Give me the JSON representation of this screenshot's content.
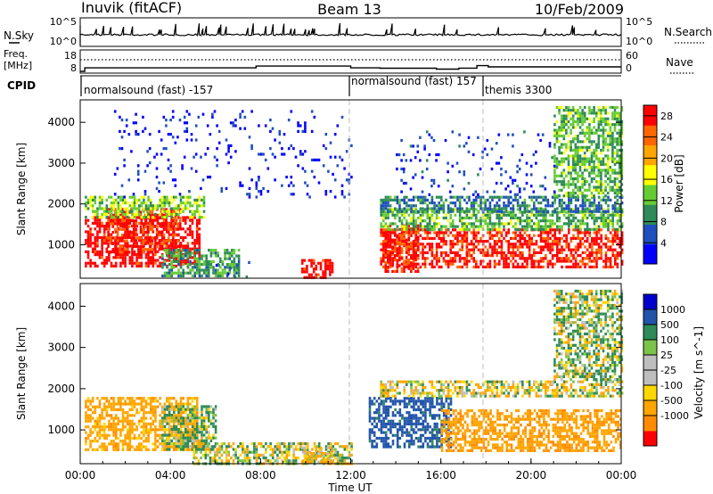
{
  "header": {
    "station": "Inuvik (fitACF)",
    "beam": "Beam 13",
    "date": "10/Feb/2009"
  },
  "panels": {
    "nsky": {
      "label": "N.Sky",
      "left_ticks": [
        "10^5",
        "10^0"
      ],
      "right_ticks": [
        "10^5",
        "10^0"
      ],
      "right_label": "N.Search"
    },
    "freq": {
      "label_line1": "Freq.",
      "label_line2": "[MHz]",
      "left_ticks": [
        "18",
        "8"
      ],
      "right_ticks": [
        "60",
        "0"
      ],
      "right_label": "Nave"
    },
    "cpid": {
      "label": "CPID",
      "programs": [
        "normalsound (fast) -157",
        "normalsound (fast) 157",
        "themis 3300"
      ]
    }
  },
  "colors": {
    "line": "#000000",
    "guide": "#bbbbbb",
    "power_scale": [
      "#0000ff",
      "#1f4fbf",
      "#2e8b57",
      "#66cc33",
      "#ffff00",
      "#ffa500",
      "#ff6600",
      "#ff0000"
    ],
    "velocity_scale": [
      "#ff0000",
      "#ff8c00",
      "#ffa500",
      "#ffd700",
      "#bebebe",
      "#bebebe",
      "#7cc34a",
      "#2e8b57",
      "#2255aa",
      "#0000cc"
    ]
  },
  "chart_data": [
    {
      "type": "heatmap",
      "name": "power",
      "ylabel": "Slant Range [km]",
      "yticks": [
        1000,
        2000,
        3000,
        4000
      ],
      "ylim": [
        180,
        4550
      ],
      "xlim": [
        "00:00",
        "24:00"
      ],
      "colorbar": {
        "label": "Power [dB]",
        "ticks": [
          "28",
          "24",
          "20",
          "16",
          "12",
          "8",
          "4"
        ],
        "range": [
          0,
          30
        ]
      },
      "regions": [
        {
          "t": [
            0.2,
            5.3
          ],
          "r": [
            500,
            1700
          ],
          "value": 30
        },
        {
          "t": [
            1.2,
            4.4
          ],
          "r": [
            800,
            1900
          ],
          "value": 27
        },
        {
          "t": [
            0.2,
            5.5
          ],
          "r": [
            1650,
            2200
          ],
          "value": 14
        },
        {
          "t": [
            3.6,
            7.0
          ],
          "r": [
            250,
            900
          ],
          "value": 10
        },
        {
          "t": [
            6.0,
            7.5
          ],
          "r": [
            200,
            600
          ],
          "value": 6
        },
        {
          "t": [
            9.8,
            11.2
          ],
          "r": [
            200,
            650
          ],
          "value": 29
        },
        {
          "t": [
            13.5,
            15.0
          ],
          "r": [
            350,
            1500
          ],
          "value": 27
        },
        {
          "t": [
            13.3,
            24.0
          ],
          "r": [
            450,
            1400
          ],
          "value": 28
        },
        {
          "t": [
            13.3,
            24.0
          ],
          "r": [
            1400,
            1900
          ],
          "value": 12
        },
        {
          "t": [
            13.3,
            24.0
          ],
          "r": [
            1800,
            2200
          ],
          "value": 8
        },
        {
          "t": [
            21.0,
            24.0
          ],
          "r": [
            2200,
            4400
          ],
          "value": 12
        },
        {
          "t": [
            14.0,
            21.0
          ],
          "r": [
            2200,
            3800
          ],
          "value": 4
        },
        {
          "t": [
            1.5,
            12.0
          ],
          "r": [
            2200,
            4300
          ],
          "value": 3
        }
      ]
    },
    {
      "type": "heatmap",
      "name": "velocity",
      "ylabel": "Slant Range [km]",
      "yticks": [
        1000,
        2000,
        3000,
        4000
      ],
      "ylim": [
        180,
        4550
      ],
      "xlim": [
        "00:00",
        "24:00"
      ],
      "xlabel": "Time UT",
      "xticks": [
        "00:00",
        "04:00",
        "08:00",
        "12:00",
        "16:00",
        "20:00",
        "00:00"
      ],
      "colorbar": {
        "label": "Velocity [m s^-1]",
        "ticks": [
          "1000",
          "500",
          "100",
          "25",
          "-25",
          "-100",
          "-500",
          "-1000"
        ],
        "range": [
          -1000,
          1000
        ]
      },
      "regions": [
        {
          "t": [
            0.2,
            5.2
          ],
          "r": [
            500,
            1800
          ],
          "value": -300
        },
        {
          "t": [
            3.6,
            6.0
          ],
          "r": [
            500,
            1600
          ],
          "value": 100
        },
        {
          "t": [
            5.0,
            12.0
          ],
          "r": [
            200,
            700
          ],
          "value": 0
        },
        {
          "t": [
            9.8,
            11.2
          ],
          "r": [
            200,
            600
          ],
          "value": -200
        },
        {
          "t": [
            12.8,
            16.5
          ],
          "r": [
            600,
            1800
          ],
          "value": 700
        },
        {
          "t": [
            16.0,
            24.0
          ],
          "r": [
            500,
            1500
          ],
          "value": -400
        },
        {
          "t": [
            13.3,
            24.0
          ],
          "r": [
            1800,
            2200
          ],
          "value": -50
        },
        {
          "t": [
            21.0,
            24.0
          ],
          "r": [
            2200,
            4400
          ],
          "value": 50
        }
      ]
    },
    {
      "type": "line",
      "name": "frequency",
      "x": [
        0,
        0.2,
        7.0,
        7.8,
        12.0,
        13.3,
        15.8,
        16.8,
        17.6,
        18.1,
        24.0
      ],
      "y": [
        8,
        10.8,
        10.8,
        12.2,
        10.8,
        10.5,
        9.8,
        10.6,
        12.6,
        11.6,
        11.6
      ]
    }
  ]
}
